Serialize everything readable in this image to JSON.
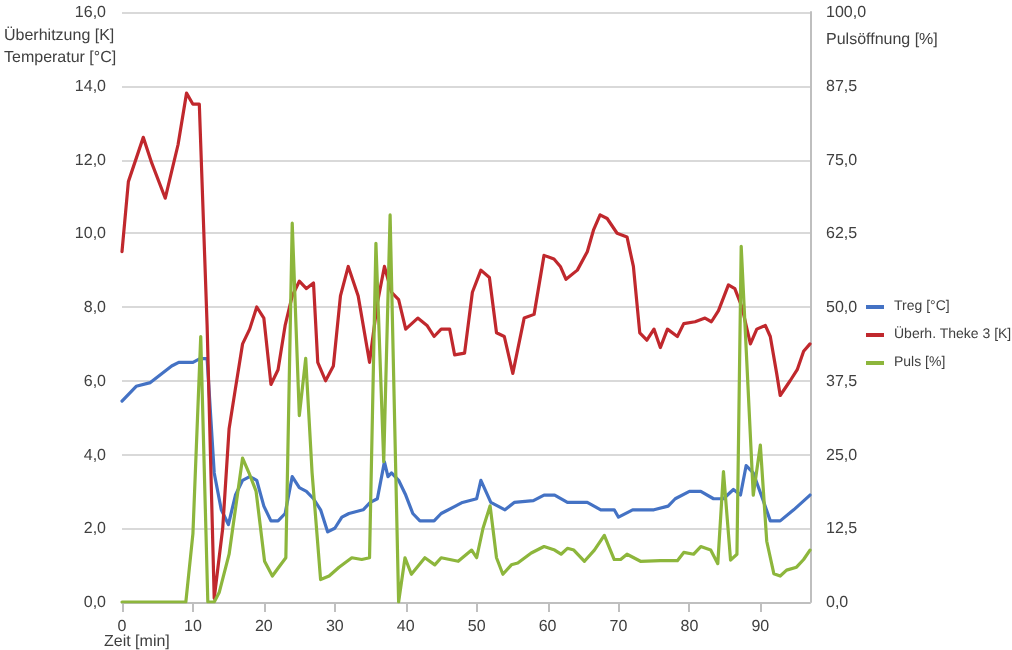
{
  "chart_data": {
    "type": "line",
    "xlabel": "Zeit [min]",
    "ylabel": "Überhitzung [K]\nTemperatur [°C]",
    "y2label": "Pulsöffnung [%]",
    "xlim": [
      0,
      97
    ],
    "xticks": [
      0,
      10,
      20,
      30,
      40,
      50,
      60,
      70,
      80,
      90
    ],
    "ylim": [
      0,
      16
    ],
    "yticks": [
      {
        "value": 0,
        "label": "0,0"
      },
      {
        "value": 2,
        "label": "2,0"
      },
      {
        "value": 4,
        "label": "4,0"
      },
      {
        "value": 6,
        "label": "6,0"
      },
      {
        "value": 8,
        "label": "8,0"
      },
      {
        "value": 10,
        "label": "10,0"
      },
      {
        "value": 12,
        "label": "12,0"
      },
      {
        "value": 14,
        "label": "14,0"
      },
      {
        "value": 16,
        "label": "16,0"
      }
    ],
    "y2lim": [
      0,
      100
    ],
    "y2ticks": [
      {
        "value": 0,
        "label": "0,0"
      },
      {
        "value": 12.5,
        "label": "12,5"
      },
      {
        "value": 25,
        "label": "25,0"
      },
      {
        "value": 37.5,
        "label": "37,5"
      },
      {
        "value": 50,
        "label": "50,0"
      },
      {
        "value": 62.5,
        "label": "62,5"
      },
      {
        "value": 75,
        "label": "75,0"
      },
      {
        "value": 87.5,
        "label": "87,5"
      },
      {
        "value": 100,
        "label": "100,0"
      }
    ],
    "grid": "y",
    "legend": "right",
    "marker": "none",
    "line_style": "solid",
    "series": [
      {
        "name": "Treg [°C]",
        "color": "#4472c4",
        "x": [
          0,
          2,
          4,
          5,
          7,
          8,
          10,
          11,
          12,
          13,
          14,
          15,
          16,
          17,
          18,
          19,
          20,
          21,
          22,
          23,
          24,
          25,
          26,
          27,
          28,
          29,
          30,
          31,
          32,
          34,
          35,
          36,
          37,
          37.5,
          38,
          39,
          40,
          41,
          42,
          44,
          45,
          47,
          48,
          50,
          50.6,
          52,
          54,
          55.3,
          58,
          59.5,
          61,
          62.8,
          65.6,
          67.5,
          69.4,
          70,
          72,
          75,
          77,
          78,
          80,
          81.6,
          83.4,
          84.8,
          86.2,
          87.2,
          88,
          89,
          90.5,
          91.4,
          92.8,
          94.7,
          97
        ],
        "values": [
          5.45,
          5.85,
          5.95,
          6.1,
          6.4,
          6.5,
          6.5,
          6.6,
          6.6,
          3.5,
          2.5,
          2.1,
          2.9,
          3.3,
          3.4,
          3.3,
          2.6,
          2.2,
          2.2,
          2.4,
          3.4,
          3.1,
          3.0,
          2.8,
          2.5,
          1.9,
          2.0,
          2.3,
          2.4,
          2.5,
          2.7,
          2.8,
          3.8,
          3.4,
          3.5,
          3.3,
          2.9,
          2.4,
          2.2,
          2.2,
          2.4,
          2.6,
          2.7,
          2.8,
          3.3,
          2.7,
          2.5,
          2.7,
          2.75,
          2.9,
          2.9,
          2.7,
          2.7,
          2.5,
          2.5,
          2.3,
          2.5,
          2.5,
          2.6,
          2.8,
          3.0,
          3.0,
          2.8,
          2.8,
          3.05,
          2.9,
          3.7,
          3.5,
          2.7,
          2.2,
          2.2,
          2.5,
          2.9
        ]
      },
      {
        "name": "Überh. Theke 3 [K]",
        "color": "#c0282d",
        "x": [
          0,
          0.9,
          2.3,
          3,
          4.2,
          6.1,
          7.9,
          9.1,
          10,
          10.9,
          12,
          13,
          14.2,
          15.1,
          16,
          17,
          18,
          19,
          20,
          21,
          22,
          23,
          24,
          25,
          26,
          27,
          27.6,
          28.7,
          29.8,
          30.8,
          31.9,
          33.3,
          34.9,
          36,
          37,
          38,
          39,
          40,
          41.7,
          43,
          44,
          45,
          46.2,
          46.9,
          48.3,
          49.4,
          50.6,
          51.8,
          52.8,
          53.9,
          55.1,
          56.7,
          58.1,
          59.5,
          60.9,
          61.8,
          62.6,
          64.2,
          65.6,
          66.5,
          67.4,
          68.4,
          69.8,
          71.2,
          72.1,
          73,
          74,
          75,
          75.9,
          76.9,
          78.3,
          79.2,
          80.8,
          82.2,
          83.1,
          84.1,
          85.5,
          86.4,
          87.4,
          88.6,
          89.5,
          90.7,
          91.4,
          92.3,
          92.8,
          94.2,
          95.2,
          96.1,
          97
        ],
        "values": [
          9.5,
          11.4,
          12.2,
          12.6,
          11.9,
          10.95,
          12.4,
          13.8,
          13.5,
          13.5,
          7.5,
          0.1,
          2.0,
          4.7,
          5.8,
          7.0,
          7.4,
          8.0,
          7.7,
          5.9,
          6.3,
          7.5,
          8.3,
          8.7,
          8.5,
          8.65,
          6.5,
          6.0,
          6.4,
          8.3,
          9.1,
          8.3,
          6.5,
          8.1,
          9.1,
          8.4,
          8.2,
          7.4,
          7.7,
          7.5,
          7.2,
          7.4,
          7.4,
          6.7,
          6.75,
          8.4,
          9.0,
          8.8,
          7.3,
          7.2,
          6.2,
          7.7,
          7.8,
          9.4,
          9.3,
          9.1,
          8.75,
          9.0,
          9.5,
          10.1,
          10.5,
          10.4,
          10.0,
          9.9,
          9.1,
          7.3,
          7.1,
          7.4,
          6.9,
          7.4,
          7.2,
          7.55,
          7.6,
          7.7,
          7.6,
          7.9,
          8.6,
          8.5,
          8.0,
          7.0,
          7.4,
          7.5,
          7.2,
          6.2,
          5.6,
          6.0,
          6.3,
          6.8,
          7.0
        ]
      },
      {
        "name": "Puls [%]",
        "color": "#8db63c",
        "axis": "y2",
        "x": [
          0,
          9,
          10,
          11.1,
          12.1,
          13,
          13.7,
          15.1,
          17,
          17.9,
          18.9,
          20.1,
          21.2,
          22.1,
          23.1,
          24,
          25,
          25.9,
          26.8,
          28,
          29.2,
          30.6,
          32.4,
          33.8,
          34.9,
          35.8,
          36.9,
          37.8,
          39,
          39.9,
          40.8,
          42.7,
          44.1,
          45,
          47.4,
          49.3,
          50,
          50.9,
          51.9,
          52.8,
          53.7,
          54.9,
          55.8,
          57.7,
          59.5,
          61,
          61.9,
          62.8,
          63.7,
          65.2,
          66.6,
          68,
          69.4,
          70.3,
          71.2,
          73.1,
          75.9,
          78.3,
          79.2,
          80.6,
          81.6,
          83,
          84,
          84.8,
          85.8,
          86.7,
          87.3,
          89,
          90,
          90.9,
          91.9,
          92.8,
          93.7,
          95.1,
          96.1,
          97
        ],
        "values": [
          0,
          0,
          11.6,
          45,
          0,
          0,
          1.6,
          8.1,
          24.4,
          21.9,
          18.8,
          6.9,
          4.4,
          5.9,
          7.5,
          64.2,
          31.6,
          41.3,
          21.9,
          3.8,
          4.4,
          5.9,
          7.5,
          7.2,
          7.5,
          60.8,
          23.8,
          65.6,
          0,
          7.5,
          4.7,
          7.5,
          6.3,
          7.5,
          6.9,
          8.8,
          7.5,
          12.5,
          16.3,
          7.5,
          4.7,
          6.3,
          6.6,
          8.3,
          9.4,
          8.8,
          8.1,
          9.1,
          8.8,
          6.9,
          8.8,
          11.3,
          7.2,
          7.2,
          8.1,
          6.9,
          7.0,
          7.0,
          8.4,
          8.1,
          9.4,
          8.8,
          6.5,
          22.1,
          7.1,
          8.1,
          60.3,
          18.1,
          26.6,
          10.3,
          4.8,
          4.4,
          5.4,
          5.9,
          7.2,
          8.8
        ]
      }
    ]
  }
}
